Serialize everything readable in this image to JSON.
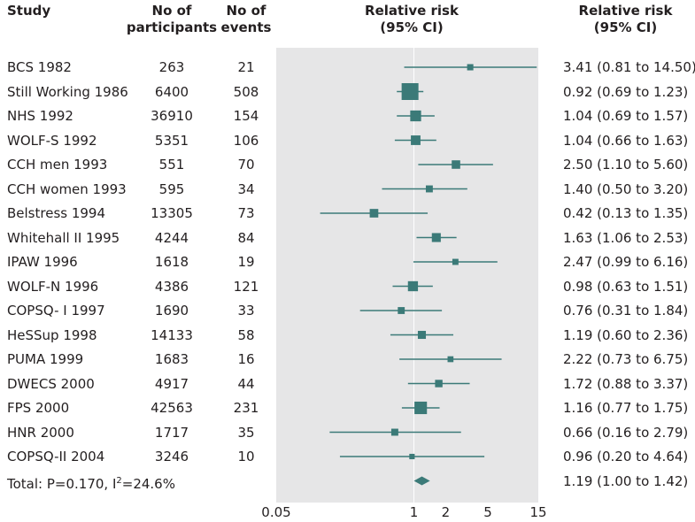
{
  "headers": {
    "study": "Study",
    "participants": [
      "No of",
      "participants"
    ],
    "events": [
      "No of",
      "events"
    ],
    "rr_plot": [
      "Relative risk",
      "(95% CI)"
    ],
    "rr_text": [
      "Relative risk",
      "(95% CI)"
    ]
  },
  "rows": [
    {
      "study": "BCS 1982",
      "n": "263",
      "events": "21",
      "rr_text": "3.41 (0.81 to 14.50)"
    },
    {
      "study": "Still Working 1986",
      "n": "6400",
      "events": "508",
      "rr_text": "0.92 (0.69 to 1.23)"
    },
    {
      "study": "NHS 1992",
      "n": "36910",
      "events": "154",
      "rr_text": "1.04 (0.69 to 1.57)"
    },
    {
      "study": "WOLF-S 1992",
      "n": "5351",
      "events": "106",
      "rr_text": "1.04 (0.66 to 1.63)"
    },
    {
      "study": "CCH men 1993",
      "n": "551",
      "events": "70",
      "rr_text": "2.50 (1.10 to 5.60)"
    },
    {
      "study": "CCH women 1993",
      "n": "595",
      "events": "34",
      "rr_text": "1.40 (0.50 to 3.20)"
    },
    {
      "study": "Belstress 1994",
      "n": "13305",
      "events": "73",
      "rr_text": "0.42 (0.13 to 1.35)"
    },
    {
      "study": "Whitehall II 1995",
      "n": "4244",
      "events": "84",
      "rr_text": "1.63 (1.06 to 2.53)"
    },
    {
      "study": "IPAW 1996",
      "n": "1618",
      "events": "19",
      "rr_text": "2.47 (0.99 to 6.16)"
    },
    {
      "study": "WOLF-N 1996",
      "n": "4386",
      "events": "121",
      "rr_text": "0.98 (0.63 to 1.51)"
    },
    {
      "study": "COPSQ- I 1997",
      "n": "1690",
      "events": "33",
      "rr_text": "0.76 (0.31 to 1.84)"
    },
    {
      "study": "HeSSup 1998",
      "n": "14133",
      "events": "58",
      "rr_text": "1.19 (0.60 to 2.36)"
    },
    {
      "study": "PUMA 1999",
      "n": "1683",
      "events": "16",
      "rr_text": "2.22 (0.73 to 6.75)"
    },
    {
      "study": "DWECS 2000",
      "n": "4917",
      "events": "44",
      "rr_text": "1.72 (0.88 to 3.37)"
    },
    {
      "study": "FPS 2000",
      "n": "42563",
      "events": "231",
      "rr_text": "1.16 (0.77 to 1.75)"
    },
    {
      "study": "HNR 2000",
      "n": "1717",
      "events": "35",
      "rr_text": "0.66 (0.16 to 2.79)"
    },
    {
      "study": "COPSQ-II 2004",
      "n": "3246",
      "events": "10",
      "rr_text": "0.96 (0.20 to 4.64)"
    }
  ],
  "total": {
    "label_prefix": "Total: P=0.170, I",
    "label_sup": "2",
    "label_suffix": "=24.6%",
    "rr_text": "1.19 (1.00 to 1.42)"
  },
  "colors": {
    "marker": "#3b7a78",
    "panel": "#e6e6e7",
    "text": "#231f20"
  },
  "chart_data": {
    "type": "forest",
    "title": "Relative risk (95% CI)",
    "xscale": "log",
    "xlim": [
      0.05,
      15
    ],
    "xticks": [
      0.05,
      1,
      2,
      5,
      15
    ],
    "xtick_labels": [
      "0.05",
      "1",
      "2",
      "5",
      "15"
    ],
    "reference_line": 1,
    "studies": [
      {
        "label": "BCS 1982",
        "rr": 3.41,
        "lo": 0.81,
        "hi": 14.5,
        "weight": 21
      },
      {
        "label": "Still Working 1986",
        "rr": 0.92,
        "lo": 0.69,
        "hi": 1.23,
        "weight": 508
      },
      {
        "label": "NHS 1992",
        "rr": 1.04,
        "lo": 0.69,
        "hi": 1.57,
        "weight": 154
      },
      {
        "label": "WOLF-S 1992",
        "rr": 1.04,
        "lo": 0.66,
        "hi": 1.63,
        "weight": 106
      },
      {
        "label": "CCH men 1993",
        "rr": 2.5,
        "lo": 1.1,
        "hi": 5.6,
        "weight": 70
      },
      {
        "label": "CCH women 1993",
        "rr": 1.4,
        "lo": 0.5,
        "hi": 3.2,
        "weight": 34
      },
      {
        "label": "Belstress 1994",
        "rr": 0.42,
        "lo": 0.13,
        "hi": 1.35,
        "weight": 73
      },
      {
        "label": "Whitehall II 1995",
        "rr": 1.63,
        "lo": 1.06,
        "hi": 2.53,
        "weight": 84
      },
      {
        "label": "IPAW 1996",
        "rr": 2.47,
        "lo": 0.99,
        "hi": 6.16,
        "weight": 19
      },
      {
        "label": "WOLF-N 1996",
        "rr": 0.98,
        "lo": 0.63,
        "hi": 1.51,
        "weight": 121
      },
      {
        "label": "COPSQ- I 1997",
        "rr": 0.76,
        "lo": 0.31,
        "hi": 1.84,
        "weight": 33
      },
      {
        "label": "HeSSup 1998",
        "rr": 1.19,
        "lo": 0.6,
        "hi": 2.36,
        "weight": 58
      },
      {
        "label": "PUMA 1999",
        "rr": 2.22,
        "lo": 0.73,
        "hi": 6.75,
        "weight": 16
      },
      {
        "label": "DWECS 2000",
        "rr": 1.72,
        "lo": 0.88,
        "hi": 3.37,
        "weight": 44
      },
      {
        "label": "FPS 2000",
        "rr": 1.16,
        "lo": 0.77,
        "hi": 1.75,
        "weight": 231
      },
      {
        "label": "HNR 2000",
        "rr": 0.66,
        "lo": 0.16,
        "hi": 2.79,
        "weight": 35
      },
      {
        "label": "COPSQ-II 2004",
        "rr": 0.96,
        "lo": 0.2,
        "hi": 4.64,
        "weight": 10
      }
    ],
    "pooled": {
      "label": "Total",
      "rr": 1.19,
      "lo": 1.0,
      "hi": 1.42,
      "p": 0.17,
      "i2": 24.6
    }
  }
}
